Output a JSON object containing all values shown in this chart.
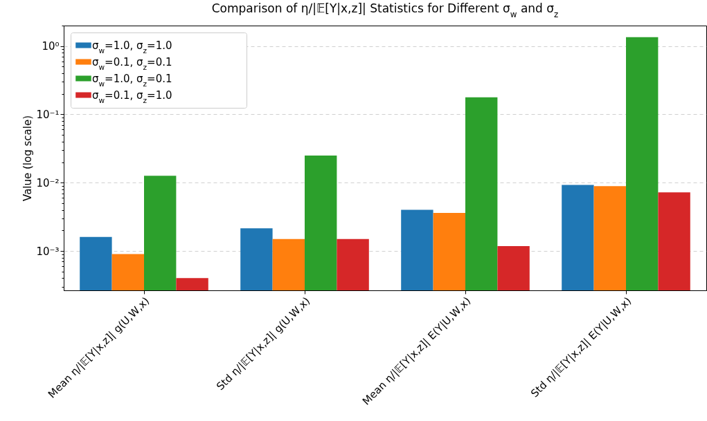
{
  "chart_data": {
    "type": "bar",
    "title": "Comparison of η/|𝔼[Y|x,z]| Statistics for Different σ$_{w}$ and σ$_{z}$",
    "ylabel": "Value (log scale)",
    "categories": [
      "Mean η/|𝔼[Y|x,z]| g(U,W,x)",
      "Std η/|𝔼[Y|x,z]| g(U,W,x)",
      "Mean η/|𝔼[Y|x,z]| E(Y|U,W,x)",
      "Std η/|𝔼[Y|x,z]| E(Y|U,W,x)"
    ],
    "series": [
      {
        "name": "σ$_{w}$=1.0, σ$_{z}$=1.0",
        "color": "#1f77b4",
        "values": [
          0.0016,
          0.00215,
          0.004,
          0.0093
        ]
      },
      {
        "name": "σ$_{w}$=0.1, σ$_{z}$=0.1",
        "color": "#ff7f0e",
        "values": [
          0.0009,
          0.0015,
          0.0036,
          0.0089
        ]
      },
      {
        "name": "σ$_{w}$=1.0, σ$_{z}$=0.1",
        "color": "#2ca02c",
        "values": [
          0.0126,
          0.025,
          0.178,
          1.35
        ]
      },
      {
        "name": "σ$_{w}$=0.1, σ$_{z}$=1.0",
        "color": "#d62728",
        "values": [
          0.0004,
          0.0015,
          0.00118,
          0.0072
        ]
      }
    ],
    "log": "y",
    "ylim": [
      0.000265,
      2.0
    ],
    "yticks": [
      {
        "value": 0.0003,
        "label": null
      },
      {
        "value": 0.0004,
        "label": null
      },
      {
        "value": 0.0005,
        "label": null
      },
      {
        "value": 0.0006,
        "label": null
      },
      {
        "value": 0.0007,
        "label": null
      },
      {
        "value": 0.0008,
        "label": null
      },
      {
        "value": 0.0009,
        "label": null
      },
      {
        "value": 0.001,
        "label": "10⁻³"
      },
      {
        "value": 0.002,
        "label": null
      },
      {
        "value": 0.003,
        "label": null
      },
      {
        "value": 0.004,
        "label": null
      },
      {
        "value": 0.005,
        "label": null
      },
      {
        "value": 0.006,
        "label": null
      },
      {
        "value": 0.007,
        "label": null
      },
      {
        "value": 0.008,
        "label": null
      },
      {
        "value": 0.009,
        "label": null
      },
      {
        "value": 0.01,
        "label": "10⁻²"
      },
      {
        "value": 0.02,
        "label": null
      },
      {
        "value": 0.03,
        "label": null
      },
      {
        "value": 0.04,
        "label": null
      },
      {
        "value": 0.05,
        "label": null
      },
      {
        "value": 0.06,
        "label": null
      },
      {
        "value": 0.07,
        "label": null
      },
      {
        "value": 0.08,
        "label": null
      },
      {
        "value": 0.09,
        "label": null
      },
      {
        "value": 0.1,
        "label": "10⁻¹"
      },
      {
        "value": 0.2,
        "label": null
      },
      {
        "value": 0.3,
        "label": null
      },
      {
        "value": 0.4,
        "label": null
      },
      {
        "value": 0.5,
        "label": null
      },
      {
        "value": 0.6,
        "label": null
      },
      {
        "value": 0.7,
        "label": null
      },
      {
        "value": 0.8,
        "label": null
      },
      {
        "value": 0.9,
        "label": null
      },
      {
        "value": 1,
        "label": "10⁰"
      },
      {
        "value": 2,
        "label": null
      }
    ],
    "grid": "y",
    "legend": "top left"
  }
}
